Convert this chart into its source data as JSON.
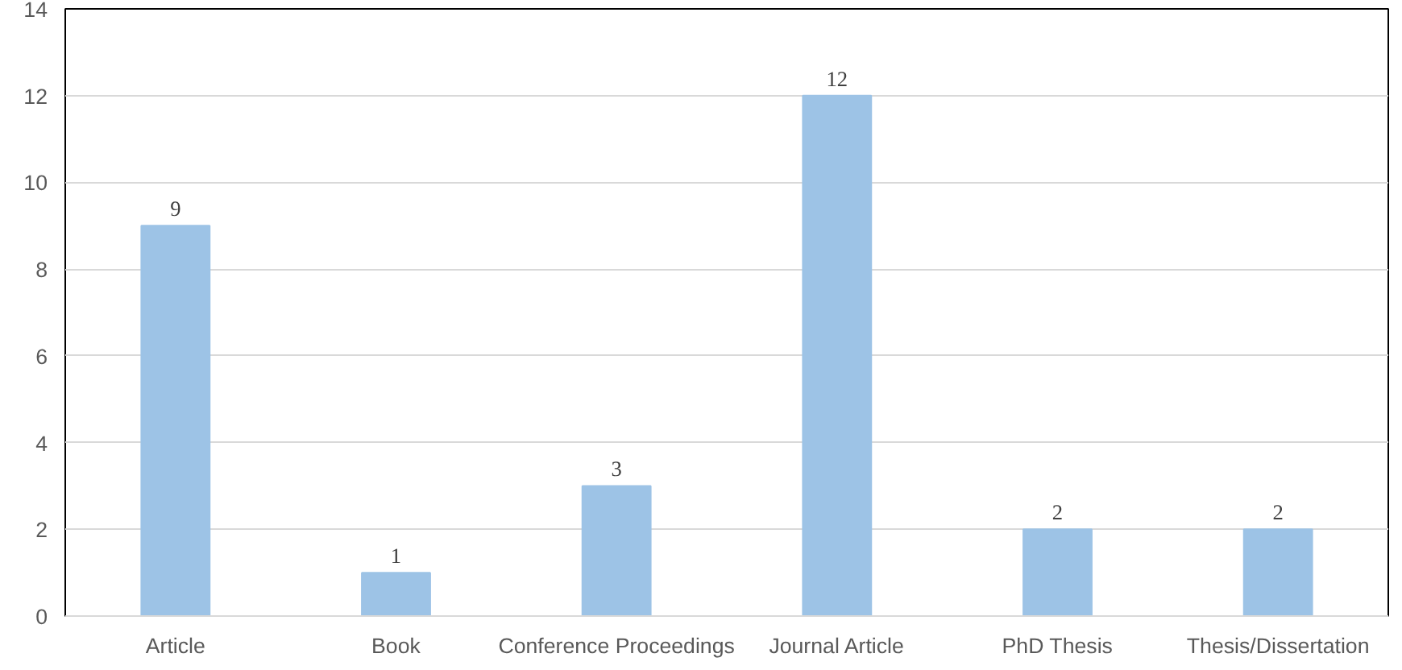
{
  "chart_data": {
    "type": "bar",
    "categories": [
      "Article",
      "Book",
      "Conference Proceedings",
      "Journal Article",
      "PhD Thesis",
      "Thesis/Dissertation"
    ],
    "values": [
      9,
      1,
      3,
      12,
      2,
      2
    ],
    "color": "#9dc3e6",
    "ylim": [
      0,
      14
    ],
    "yticks": [
      0,
      2,
      4,
      6,
      8,
      10,
      12,
      14
    ],
    "grid": "y",
    "data_labels": true
  }
}
